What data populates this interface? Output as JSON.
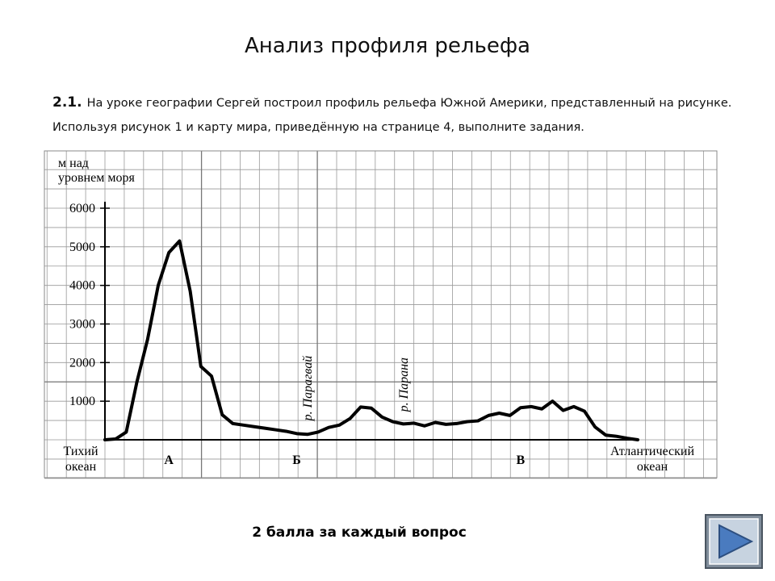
{
  "header": {
    "title": "Анализ профиля рельефа"
  },
  "task": {
    "number": "2.1.",
    "text": "На уроке географии Сергей построил профиль рельефа Южной Америки, представленный на рисунке. Используя рисунок 1 и карту мира, приведённую на странице 4, выполните задания."
  },
  "chart_data": {
    "type": "line",
    "ylabel": [
      "м над",
      "уровнем моря"
    ],
    "categories": [
      null,
      null,
      null,
      null,
      null,
      null,
      "А",
      null,
      null,
      null,
      null,
      null,
      null,
      null,
      null,
      null,
      null,
      null,
      "Б",
      null,
      null,
      null,
      null,
      null,
      null,
      null,
      null,
      null,
      null,
      null,
      null,
      null,
      null,
      null,
      null,
      null,
      null,
      null,
      null,
      "В",
      null,
      null,
      null,
      null,
      null,
      null,
      null,
      null,
      null,
      null,
      null
    ],
    "values": [
      0,
      20,
      200,
      1500,
      2600,
      4000,
      4850,
      5150,
      3850,
      1900,
      1650,
      650,
      420,
      380,
      340,
      300,
      260,
      220,
      160,
      140,
      200,
      320,
      380,
      550,
      850,
      820,
      590,
      470,
      410,
      430,
      360,
      450,
      400,
      420,
      470,
      490,
      630,
      690,
      630,
      830,
      860,
      800,
      1000,
      760,
      860,
      740,
      330,
      120,
      90,
      40,
      0
    ],
    "color": "#000000",
    "ylim": [
      0,
      6000
    ],
    "yticks": [
      1000,
      2000,
      3000,
      4000,
      5000,
      6000
    ],
    "left_end": [
      "Тихий",
      "океан"
    ],
    "right_end": [
      "Атлантический",
      "океан"
    ],
    "annotations": [
      {
        "text": "р. Парагвай",
        "index": 20
      },
      {
        "text": "р. Парана",
        "index": 29
      }
    ],
    "grid": true
  },
  "footer": {
    "text": "2 балла за каждый вопрос"
  }
}
